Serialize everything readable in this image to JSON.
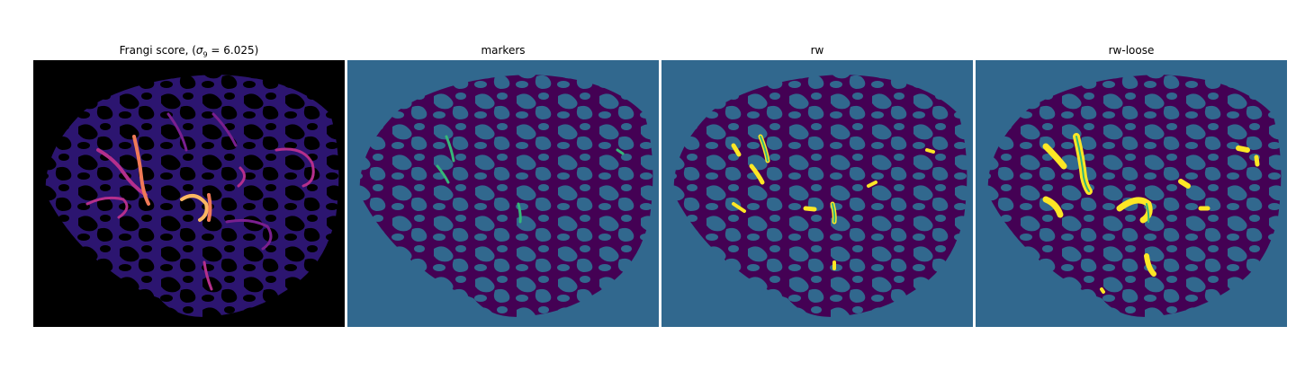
{
  "figure": {
    "panels": [
      {
        "title_prefix": "Frangi score, (",
        "title_sigma": "σ",
        "title_sub": "9",
        "title_suffix": " = 6.025)"
      },
      {
        "title": "markers"
      },
      {
        "title": "rw"
      },
      {
        "title": "rw-loose"
      }
    ],
    "colors": {
      "frangi_background": "#000000",
      "frangi_vessel_low": "#3b0f8f",
      "frangi_vessel_mid": "#b52f8c",
      "frangi_vessel_high": "#fbb762",
      "label_background": "#31688e",
      "label_tissue": "#440154",
      "label_marker": "#35b779",
      "label_segment": "#fde725",
      "label_segment_edge": "#bddf26"
    }
  }
}
